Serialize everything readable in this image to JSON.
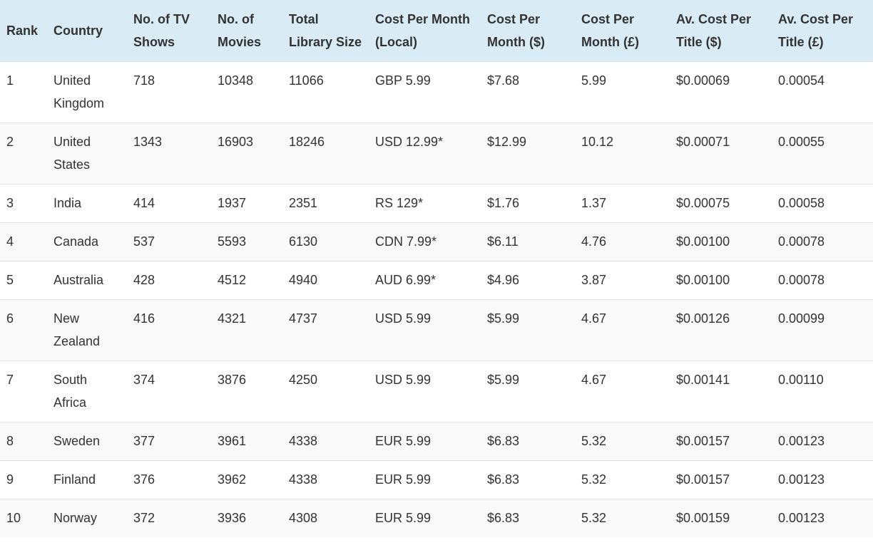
{
  "table": {
    "headers": [
      "Rank",
      "Country",
      "No. of TV Shows",
      "No. of Movies",
      "Total Library Size",
      "Cost Per Month (Local)",
      "Cost Per Month ($)",
      "Cost Per Month (£)",
      "Av. Cost Per Title ($)",
      "Av. Cost Per Title (£)"
    ],
    "rows": [
      [
        "1",
        "United Kingdom",
        "718",
        "10348",
        "11066",
        "GBP 5.99",
        "$7.68",
        "5.99",
        "$0.00069",
        "0.00054"
      ],
      [
        "2",
        "United States",
        "1343",
        "16903",
        "18246",
        "USD 12.99*",
        "$12.99",
        "10.12",
        "$0.00071",
        "0.00055"
      ],
      [
        "3",
        "India",
        "414",
        "1937",
        "2351",
        "RS 129*",
        "$1.76",
        "1.37",
        "$0.00075",
        "0.00058"
      ],
      [
        "4",
        "Canada",
        "537",
        "5593",
        "6130",
        "CDN 7.99*",
        "$6.11",
        "4.76",
        "$0.00100",
        "0.00078"
      ],
      [
        "5",
        "Australia",
        "428",
        "4512",
        "4940",
        "AUD 6.99*",
        "$4.96",
        "3.87",
        "$0.00100",
        "0.00078"
      ],
      [
        "6",
        "New Zealand",
        "416",
        "4321",
        "4737",
        "USD 5.99",
        "$5.99",
        "4.67",
        "$0.00126",
        "0.00099"
      ],
      [
        "7",
        "South Africa",
        "374",
        "3876",
        "4250",
        "USD 5.99",
        "$5.99",
        "4.67",
        "$0.00141",
        "0.00110"
      ],
      [
        "8",
        "Sweden",
        "377",
        "3961",
        "4338",
        "EUR 5.99",
        "$6.83",
        "5.32",
        "$0.00157",
        "0.00123"
      ],
      [
        "9",
        "Finland",
        "376",
        "3962",
        "4338",
        "EUR 5.99",
        "$6.83",
        "5.32",
        "$0.00157",
        "0.00123"
      ],
      [
        "10",
        "Norway",
        "372",
        "3936",
        "4308",
        "EUR 5.99",
        "$6.83",
        "5.32",
        "$0.00159",
        "0.00123"
      ]
    ]
  }
}
